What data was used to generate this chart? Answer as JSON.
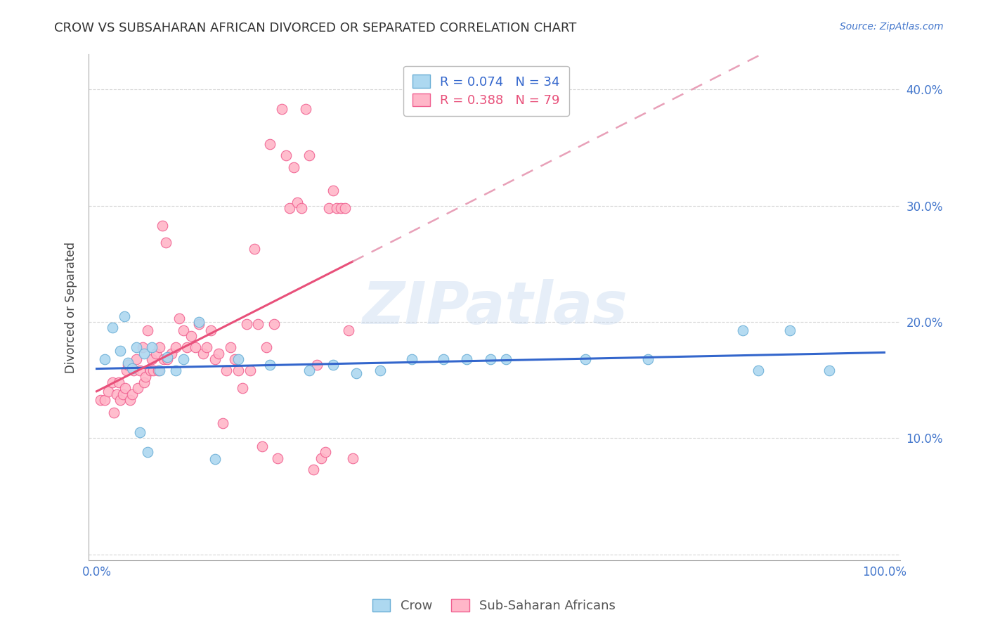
{
  "title": "CROW VS SUBSAHARAN AFRICAN DIVORCED OR SEPARATED CORRELATION CHART",
  "source": "Source: ZipAtlas.com",
  "ylabel": "Divorced or Separated",
  "watermark": "ZIPatlas",
  "xlim": [
    -0.01,
    1.02
  ],
  "ylim": [
    -0.005,
    0.43
  ],
  "xtick_positions": [
    0.0,
    0.1,
    0.2,
    0.3,
    0.4,
    0.5,
    0.6,
    0.7,
    0.8,
    0.9,
    1.0
  ],
  "xticklabels": [
    "0.0%",
    "",
    "",
    "",
    "",
    "",
    "",
    "",
    "",
    "",
    "100.0%"
  ],
  "ytick_positions": [
    0.0,
    0.1,
    0.2,
    0.3,
    0.4
  ],
  "yticklabels_right": [
    "",
    "10.0%",
    "20.0%",
    "30.0%",
    "40.0%"
  ],
  "crow_color": "#add8f0",
  "crow_edge_color": "#6aaed6",
  "ssa_color": "#ffb6c8",
  "ssa_edge_color": "#f06090",
  "crow_line_color": "#3366cc",
  "ssa_line_color": "#e8507a",
  "ssa_dashed_color": "#e8a0b8",
  "legend_crow_r": "0.074",
  "legend_crow_n": "34",
  "legend_ssa_r": "0.388",
  "legend_ssa_n": "79",
  "crow_x": [
    0.01,
    0.02,
    0.03,
    0.035,
    0.04,
    0.045,
    0.05,
    0.055,
    0.06,
    0.065,
    0.07,
    0.08,
    0.09,
    0.1,
    0.11,
    0.13,
    0.15,
    0.18,
    0.22,
    0.27,
    0.3,
    0.33,
    0.36,
    0.4,
    0.44,
    0.47,
    0.5,
    0.52,
    0.62,
    0.7,
    0.82,
    0.84,
    0.88,
    0.93
  ],
  "crow_y": [
    0.168,
    0.195,
    0.175,
    0.205,
    0.165,
    0.16,
    0.178,
    0.105,
    0.173,
    0.088,
    0.178,
    0.158,
    0.17,
    0.158,
    0.168,
    0.2,
    0.082,
    0.168,
    0.163,
    0.158,
    0.163,
    0.156,
    0.158,
    0.168,
    0.168,
    0.168,
    0.168,
    0.168,
    0.168,
    0.168,
    0.193,
    0.158,
    0.193,
    0.158
  ],
  "ssa_x": [
    0.005,
    0.01,
    0.015,
    0.02,
    0.022,
    0.025,
    0.028,
    0.03,
    0.033,
    0.036,
    0.038,
    0.04,
    0.042,
    0.045,
    0.047,
    0.05,
    0.052,
    0.055,
    0.058,
    0.06,
    0.062,
    0.065,
    0.068,
    0.07,
    0.072,
    0.075,
    0.078,
    0.08,
    0.083,
    0.085,
    0.088,
    0.09,
    0.095,
    0.1,
    0.105,
    0.11,
    0.115,
    0.12,
    0.125,
    0.13,
    0.135,
    0.14,
    0.145,
    0.15,
    0.155,
    0.16,
    0.165,
    0.17,
    0.175,
    0.18,
    0.185,
    0.19,
    0.195,
    0.2,
    0.205,
    0.21,
    0.215,
    0.22,
    0.225,
    0.23,
    0.235,
    0.24,
    0.245,
    0.25,
    0.255,
    0.26,
    0.265,
    0.27,
    0.275,
    0.28,
    0.285,
    0.29,
    0.295,
    0.3,
    0.305,
    0.31,
    0.315,
    0.32,
    0.325
  ],
  "ssa_y": [
    0.133,
    0.133,
    0.14,
    0.148,
    0.122,
    0.138,
    0.148,
    0.133,
    0.138,
    0.143,
    0.158,
    0.163,
    0.133,
    0.138,
    0.158,
    0.168,
    0.143,
    0.158,
    0.178,
    0.148,
    0.153,
    0.193,
    0.158,
    0.168,
    0.158,
    0.173,
    0.158,
    0.178,
    0.283,
    0.168,
    0.268,
    0.168,
    0.173,
    0.178,
    0.203,
    0.193,
    0.178,
    0.188,
    0.178,
    0.198,
    0.173,
    0.178,
    0.193,
    0.168,
    0.173,
    0.113,
    0.158,
    0.178,
    0.168,
    0.158,
    0.143,
    0.198,
    0.158,
    0.263,
    0.198,
    0.093,
    0.178,
    0.353,
    0.198,
    0.083,
    0.383,
    0.343,
    0.298,
    0.333,
    0.303,
    0.298,
    0.383,
    0.343,
    0.073,
    0.163,
    0.083,
    0.088,
    0.298,
    0.313,
    0.298,
    0.298,
    0.298,
    0.193,
    0.083
  ]
}
